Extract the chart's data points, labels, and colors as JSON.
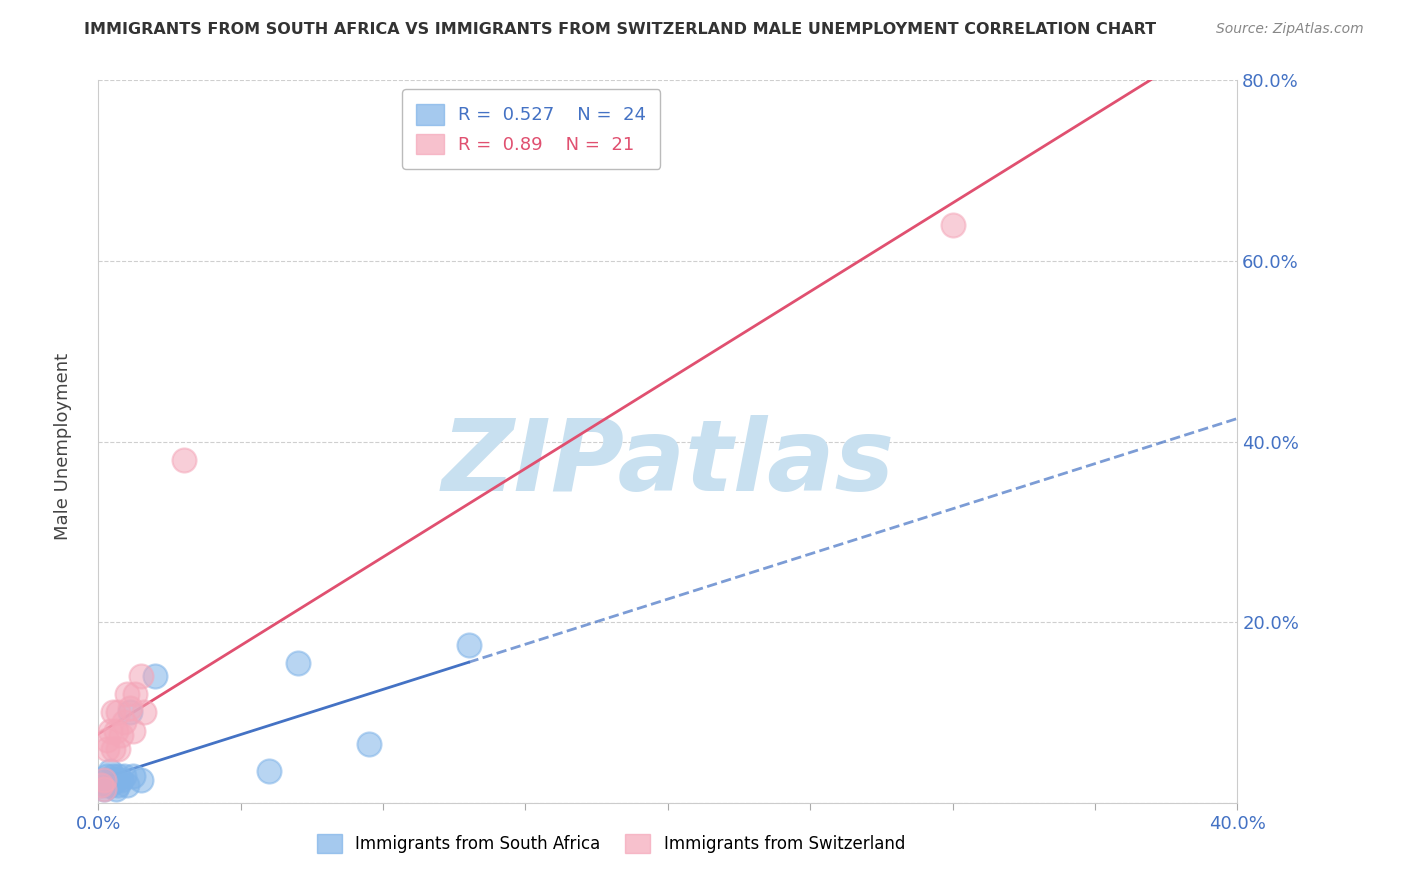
{
  "title": "IMMIGRANTS FROM SOUTH AFRICA VS IMMIGRANTS FROM SWITZERLAND MALE UNEMPLOYMENT CORRELATION CHART",
  "source": "Source: ZipAtlas.com",
  "xlabel": "",
  "ylabel": "Male Unemployment",
  "xlim": [
    0.0,
    0.4
  ],
  "ylim": [
    0.0,
    0.8
  ],
  "xticks": [
    0.0,
    0.05,
    0.1,
    0.15,
    0.2,
    0.25,
    0.3,
    0.35,
    0.4
  ],
  "yticks": [
    0.0,
    0.2,
    0.4,
    0.6,
    0.8
  ],
  "south_africa": {
    "label": "Immigrants from South Africa",
    "R": 0.527,
    "N": 24,
    "scatter_color": "#7fb3e8",
    "line_color": "#4472c4",
    "line_style_solid": "-",
    "line_style_dashed": "--",
    "x": [
      0.001,
      0.002,
      0.002,
      0.003,
      0.003,
      0.004,
      0.004,
      0.005,
      0.005,
      0.006,
      0.006,
      0.007,
      0.007,
      0.008,
      0.009,
      0.01,
      0.011,
      0.012,
      0.015,
      0.02,
      0.06,
      0.07,
      0.095,
      0.13
    ],
    "y": [
      0.02,
      0.015,
      0.025,
      0.02,
      0.03,
      0.02,
      0.035,
      0.025,
      0.03,
      0.025,
      0.015,
      0.03,
      0.02,
      0.025,
      0.03,
      0.02,
      0.1,
      0.03,
      0.025,
      0.14,
      0.035,
      0.155,
      0.065,
      0.175
    ]
  },
  "switzerland": {
    "label": "Immigrants from Switzerland",
    "R": 0.89,
    "N": 21,
    "scatter_color": "#f4a7b9",
    "line_color": "#e05070",
    "line_style": "-",
    "x": [
      0.001,
      0.002,
      0.002,
      0.003,
      0.003,
      0.004,
      0.005,
      0.005,
      0.006,
      0.007,
      0.007,
      0.008,
      0.009,
      0.01,
      0.011,
      0.012,
      0.013,
      0.015,
      0.016,
      0.03,
      0.3
    ],
    "y": [
      0.02,
      0.025,
      0.015,
      0.07,
      0.06,
      0.08,
      0.06,
      0.1,
      0.08,
      0.06,
      0.1,
      0.075,
      0.09,
      0.12,
      0.105,
      0.08,
      0.12,
      0.14,
      0.1,
      0.38,
      0.64
    ]
  },
  "watermark": "ZIPatlas",
  "watermark_color": "#c8e0f0",
  "background_color": "#ffffff",
  "grid_color": "#bbbbbb"
}
